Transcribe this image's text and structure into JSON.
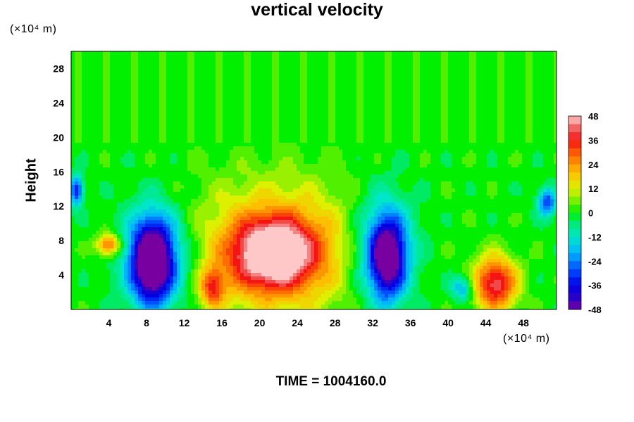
{
  "chart_data": {
    "type": "heatmap",
    "title": "vertical velocity",
    "ylabel": "Height",
    "y_unit": "(×10⁴ m)",
    "x_unit": "(×10⁴ m)",
    "footer": "TIME = 1004160.0",
    "xlim": [
      0,
      51.5
    ],
    "ylim": [
      0,
      30
    ],
    "x_ticks": [
      4,
      8,
      12,
      16,
      20,
      24,
      28,
      32,
      36,
      40,
      44,
      48
    ],
    "y_ticks": [
      4,
      8,
      12,
      16,
      20,
      24,
      28
    ],
    "colorbar": {
      "min": -48,
      "max": 48,
      "step": 4,
      "tick_labels": [
        48,
        36,
        24,
        12,
        0,
        -12,
        -24,
        -36,
        -48
      ]
    },
    "features": [
      {
        "label": "updraft",
        "x": 21.5,
        "y": 6.5,
        "value": 46,
        "sx": 3.0,
        "sy": 2.8
      },
      {
        "label": "updraft-wide",
        "x": 22,
        "y": 7,
        "value": 24,
        "sx": 6.5,
        "sy": 5.5
      },
      {
        "label": "updraft",
        "x": 45,
        "y": 3,
        "value": 42,
        "sx": 1.6,
        "sy": 2.2
      },
      {
        "label": "updraft",
        "x": 4,
        "y": 7.5,
        "value": 32,
        "sx": 0.9,
        "sy": 0.9
      },
      {
        "label": "updraft",
        "x": 15,
        "y": 2.5,
        "value": 28,
        "sx": 0.9,
        "sy": 1.6
      },
      {
        "label": "downdraft",
        "x": 8.6,
        "y": 5.5,
        "value": -48,
        "sx": 1.4,
        "sy": 3.2
      },
      {
        "label": "downdraft-wide",
        "x": 9,
        "y": 6,
        "value": -30,
        "sx": 2.5,
        "sy": 4.0
      },
      {
        "label": "downdraft",
        "x": 33.6,
        "y": 6.0,
        "value": -46,
        "sx": 1.3,
        "sy": 3.2
      },
      {
        "label": "downdraft-wide",
        "x": 33,
        "y": 7,
        "value": -24,
        "sx": 2.4,
        "sy": 4.5
      },
      {
        "label": "downdraft",
        "x": 0.6,
        "y": 13.8,
        "value": -36,
        "sx": 0.5,
        "sy": 1.2
      },
      {
        "label": "downdraft",
        "x": 50.5,
        "y": 12.5,
        "value": -30,
        "sx": 0.7,
        "sy": 1.2
      },
      {
        "label": "downdraft",
        "x": 41.5,
        "y": 2.5,
        "value": -22,
        "sx": 0.8,
        "sy": 1.0
      }
    ]
  }
}
